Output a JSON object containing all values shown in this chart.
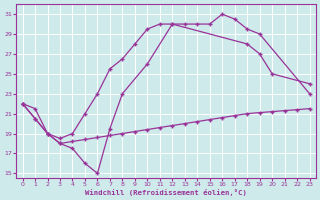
{
  "xlabel": "Windchill (Refroidissement éolien,°C)",
  "bg_color": "#ceeaea",
  "line_color": "#993399",
  "grid_color": "#b0d8d8",
  "xlim": [
    -0.5,
    23.5
  ],
  "ylim": [
    14.5,
    32
  ],
  "xticks": [
    0,
    1,
    2,
    3,
    4,
    5,
    6,
    7,
    8,
    9,
    10,
    11,
    12,
    13,
    14,
    15,
    16,
    17,
    18,
    19,
    20,
    21,
    22,
    23
  ],
  "yticks": [
    15,
    17,
    19,
    21,
    23,
    25,
    27,
    29,
    31
  ],
  "series": {
    "s1_x": [
      0,
      1,
      2,
      3,
      4,
      5,
      6,
      7,
      8,
      9,
      10,
      11,
      12,
      13,
      14,
      15,
      16,
      17,
      18,
      19,
      23
    ],
    "s1_y": [
      22.0,
      20.5,
      19.0,
      18.5,
      19.0,
      21.0,
      23.0,
      25.5,
      26.5,
      28.0,
      29.5,
      30.0,
      30.0,
      30.0,
      30.0,
      30.0,
      31.0,
      30.5,
      29.5,
      29.0,
      23.0
    ],
    "s2_x": [
      0,
      1,
      2,
      3,
      4,
      5,
      6,
      7,
      8,
      10,
      12,
      18,
      19,
      20,
      23
    ],
    "s2_y": [
      22.0,
      20.5,
      19.0,
      18.0,
      17.5,
      16.0,
      15.0,
      19.5,
      23.0,
      26.0,
      30.0,
      28.0,
      27.0,
      25.0,
      24.0
    ],
    "s3_x": [
      0,
      1,
      2,
      3,
      4,
      5,
      6,
      7,
      8,
      9,
      10,
      11,
      12,
      13,
      14,
      15,
      16,
      17,
      18,
      19,
      20,
      21,
      22,
      23
    ],
    "s3_y": [
      22.0,
      21.5,
      19.0,
      18.0,
      18.2,
      18.4,
      18.6,
      18.8,
      19.0,
      19.2,
      19.4,
      19.6,
      19.8,
      20.0,
      20.2,
      20.4,
      20.6,
      20.8,
      21.0,
      21.1,
      21.2,
      21.3,
      21.4,
      21.5
    ]
  }
}
